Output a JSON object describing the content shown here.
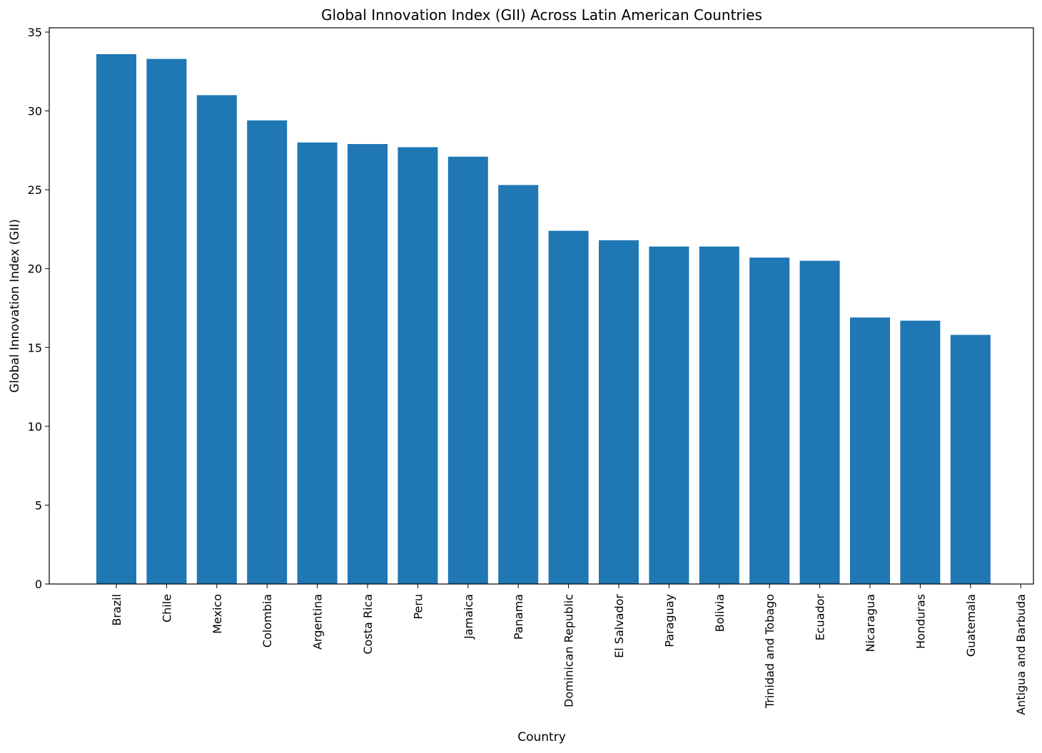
{
  "chart_data": {
    "type": "bar",
    "title": "Global Innovation Index (GII) Across Latin American Countries",
    "xlabel": "Country",
    "ylabel": "Global Innovation Index (GII)",
    "ylim": [
      0,
      35
    ],
    "yticks": [
      0,
      5,
      10,
      15,
      20,
      25,
      30,
      35
    ],
    "grid": false,
    "bar_color": "#1f77b4",
    "categories": [
      "Brazil",
      "Chile",
      "Mexico",
      "Colombia",
      "Argentina",
      "Costa Rica",
      "Peru",
      "Jamaica",
      "Panama",
      "Dominican Republic",
      "El Salvador",
      "Paraguay",
      "Bolivia",
      "Trinidad and Tobago",
      "Ecuador",
      "Nicaragua",
      "Honduras",
      "Guatemala",
      "Antigua and Barbuda"
    ],
    "values": [
      33.6,
      33.3,
      31.0,
      29.4,
      28.0,
      27.9,
      27.7,
      27.1,
      25.3,
      22.4,
      21.8,
      21.4,
      21.4,
      20.7,
      20.5,
      16.9,
      16.7,
      15.8,
      0
    ]
  }
}
